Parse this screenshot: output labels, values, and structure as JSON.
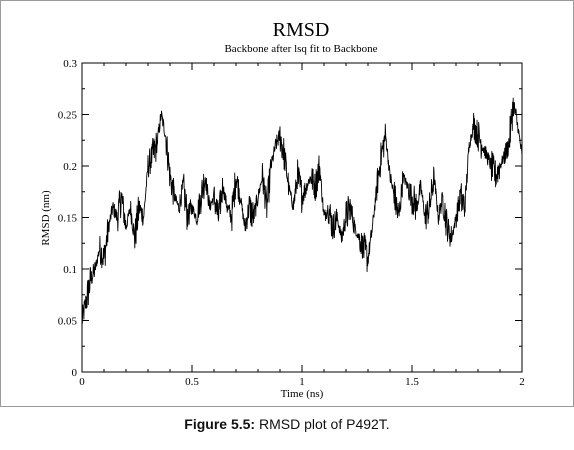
{
  "figure": {
    "caption_label": "Figure 5.5:",
    "caption_text": " RMSD plot of P492T."
  },
  "chart_data": {
    "type": "line",
    "title": "RMSD",
    "subtitle": "Backbone after lsq fit to Backbone",
    "xlabel": "Time (ns)",
    "ylabel": "RMSD (nm)",
    "xlim": [
      0,
      2
    ],
    "ylim": [
      0,
      0.3
    ],
    "xticks": [
      "0",
      "0.5",
      "1",
      "1.5",
      "2"
    ],
    "yticks": [
      "0",
      "0.05",
      "0.1",
      "0.15",
      "0.2",
      "0.25",
      "0.3"
    ],
    "grid": false,
    "series": [
      {
        "color": "#000000",
        "x": [
          0,
          0.02,
          0.04,
          0.06,
          0.08,
          0.1,
          0.12,
          0.14,
          0.16,
          0.18,
          0.2,
          0.22,
          0.24,
          0.26,
          0.28,
          0.3,
          0.32,
          0.34,
          0.36,
          0.38,
          0.4,
          0.42,
          0.44,
          0.46,
          0.48,
          0.5,
          0.52,
          0.54,
          0.56,
          0.58,
          0.6,
          0.62,
          0.64,
          0.66,
          0.68,
          0.7,
          0.72,
          0.74,
          0.76,
          0.78,
          0.8,
          0.82,
          0.84,
          0.86,
          0.88,
          0.9,
          0.92,
          0.94,
          0.96,
          0.98,
          1.0,
          1.02,
          1.04,
          1.06,
          1.08,
          1.1,
          1.12,
          1.14,
          1.16,
          1.18,
          1.2,
          1.22,
          1.24,
          1.26,
          1.28,
          1.3,
          1.32,
          1.34,
          1.36,
          1.38,
          1.4,
          1.42,
          1.44,
          1.46,
          1.48,
          1.5,
          1.52,
          1.54,
          1.56,
          1.58,
          1.6,
          1.62,
          1.64,
          1.66,
          1.68,
          1.7,
          1.72,
          1.74,
          1.76,
          1.78,
          1.8,
          1.82,
          1.84,
          1.86,
          1.88,
          1.9,
          1.92,
          1.94,
          1.96,
          1.98,
          2.0
        ],
        "y": [
          0.05,
          0.07,
          0.09,
          0.1,
          0.12,
          0.11,
          0.14,
          0.16,
          0.15,
          0.17,
          0.14,
          0.16,
          0.13,
          0.16,
          0.15,
          0.2,
          0.21,
          0.22,
          0.25,
          0.23,
          0.19,
          0.17,
          0.16,
          0.18,
          0.15,
          0.16,
          0.15,
          0.17,
          0.19,
          0.16,
          0.17,
          0.15,
          0.18,
          0.16,
          0.15,
          0.19,
          0.17,
          0.14,
          0.16,
          0.15,
          0.17,
          0.19,
          0.16,
          0.2,
          0.22,
          0.23,
          0.21,
          0.18,
          0.16,
          0.19,
          0.17,
          0.18,
          0.19,
          0.18,
          0.2,
          0.15,
          0.16,
          0.14,
          0.15,
          0.13,
          0.15,
          0.16,
          0.14,
          0.13,
          0.12,
          0.11,
          0.14,
          0.18,
          0.21,
          0.23,
          0.19,
          0.17,
          0.15,
          0.19,
          0.18,
          0.17,
          0.16,
          0.18,
          0.15,
          0.16,
          0.19,
          0.15,
          0.17,
          0.14,
          0.13,
          0.15,
          0.17,
          0.16,
          0.22,
          0.24,
          0.23,
          0.22,
          0.21,
          0.2,
          0.19,
          0.2,
          0.21,
          0.22,
          0.26,
          0.24,
          0.21
        ]
      }
    ]
  }
}
